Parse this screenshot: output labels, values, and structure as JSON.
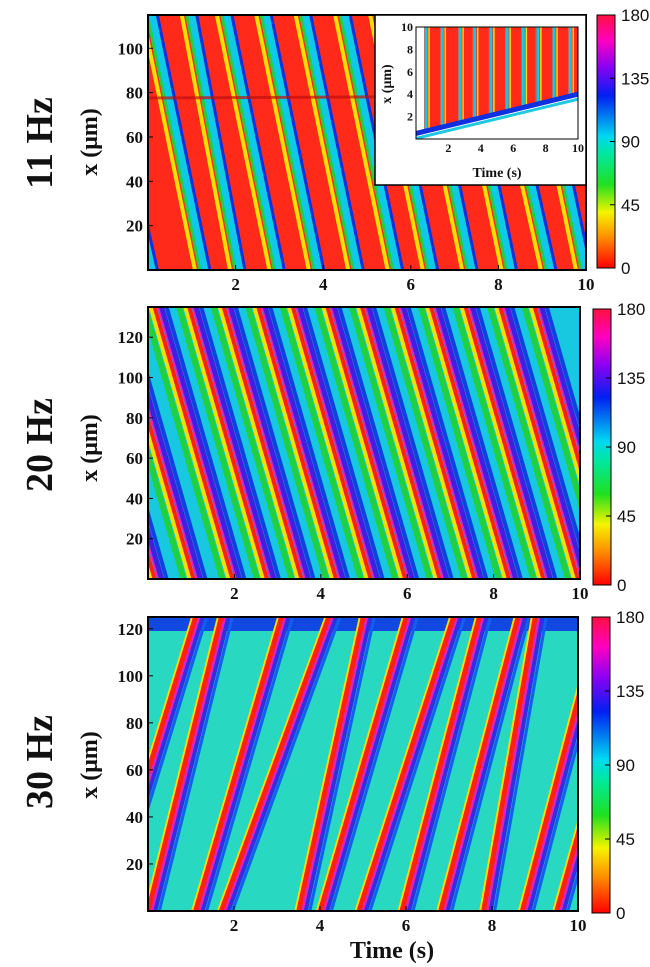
{
  "chart_data": [
    {
      "type": "heatmap",
      "label": "11 Hz",
      "xlabel": "",
      "ylabel": "x (μm)",
      "xlim": [
        0,
        10
      ],
      "ylim": [
        0,
        115
      ],
      "xticks": [
        2,
        4,
        6,
        8,
        10
      ],
      "yticks": [
        20,
        40,
        60,
        80,
        100
      ],
      "colorbar": {
        "range": [
          0,
          180
        ],
        "ticks": [
          0,
          45,
          90,
          135,
          180
        ]
      },
      "background": "#ff2a1a",
      "fronts": [
        {
          "t_top": -1.2,
          "t_bottom": 0.1,
          "color": "#10d0e0"
        },
        {
          "t_top": 0.1,
          "t_bottom": 1.3,
          "color": "#10d0e0"
        },
        {
          "t_top": 1.0,
          "t_bottom": 2.1,
          "color": "#10d0e0"
        },
        {
          "t_top": 1.8,
          "t_bottom": 3.0,
          "color": "#10d0e0"
        },
        {
          "t_top": 2.7,
          "t_bottom": 3.9,
          "color": "#10d0e0"
        },
        {
          "t_top": 3.6,
          "t_bottom": 4.8,
          "color": "#10d0e0"
        },
        {
          "t_top": 4.5,
          "t_bottom": 5.7,
          "color": "#10d0e0"
        },
        {
          "t_top": 5.3,
          "t_bottom": 6.5,
          "color": "#10d0e0"
        },
        {
          "t_top": 6.2,
          "t_bottom": 7.4,
          "color": "#10d0e0"
        },
        {
          "t_top": 7.1,
          "t_bottom": 8.3,
          "color": "#10d0e0"
        },
        {
          "t_top": 7.9,
          "t_bottom": 9.2,
          "color": "#10d0e0"
        },
        {
          "t_top": 8.8,
          "t_bottom": 10.0,
          "color": "#10d0e0"
        }
      ],
      "inset": {
        "type": "heatmap",
        "xlabel": "Time (s)",
        "ylabel": "x (μm)",
        "xlim": [
          0,
          10
        ],
        "ylim": [
          0,
          10
        ],
        "xticks": [
          2,
          4,
          6,
          8,
          10
        ],
        "yticks": [
          2,
          4,
          6,
          8,
          10
        ],
        "stripe_times": [
          0.5,
          1.5,
          2.6,
          3.5,
          4.5,
          5.5,
          6.5,
          7.4,
          8.4,
          9.4
        ],
        "boundary": [
          [
            0,
            0.5
          ],
          [
            10,
            4.0
          ]
        ]
      }
    },
    {
      "type": "heatmap",
      "label": "20 Hz",
      "xlabel": "",
      "ylabel": "x (μm)",
      "xlim": [
        0,
        10
      ],
      "ylim": [
        0,
        135
      ],
      "xticks": [
        2,
        4,
        6,
        8,
        10
      ],
      "yticks": [
        20,
        40,
        60,
        80,
        100,
        120
      ],
      "colorbar": {
        "range": [
          0,
          180
        ],
        "ticks": [
          0,
          45,
          90,
          135,
          180
        ]
      },
      "background": "#18c8e0",
      "fronts": [
        {
          "t_top": -1.6,
          "t_bottom": 0.2
        },
        {
          "t_top": -0.7,
          "t_bottom": 1.1
        },
        {
          "t_top": 0.2,
          "t_bottom": 2.0
        },
        {
          "t_top": 1.0,
          "t_bottom": 2.8
        },
        {
          "t_top": 1.8,
          "t_bottom": 3.6
        },
        {
          "t_top": 2.6,
          "t_bottom": 4.4
        },
        {
          "t_top": 3.4,
          "t_bottom": 5.2
        },
        {
          "t_top": 4.2,
          "t_bottom": 6.0
        },
        {
          "t_top": 5.0,
          "t_bottom": 6.8
        },
        {
          "t_top": 5.8,
          "t_bottom": 7.6
        },
        {
          "t_top": 6.6,
          "t_bottom": 8.4
        },
        {
          "t_top": 7.4,
          "t_bottom": 9.2
        },
        {
          "t_top": 8.2,
          "t_bottom": 10.0
        },
        {
          "t_top": 9.0,
          "t_bottom": 10.8
        }
      ]
    },
    {
      "type": "heatmap",
      "label": "30 Hz",
      "xlabel": "Time (s)",
      "ylabel": "x (μm)",
      "xlim": [
        0,
        10
      ],
      "ylim": [
        0,
        125
      ],
      "xticks": [
        2,
        4,
        6,
        8,
        10
      ],
      "yticks": [
        20,
        40,
        60,
        80,
        100,
        120
      ],
      "colorbar": {
        "range": [
          0,
          180
        ],
        "ticks": [
          0,
          45,
          90,
          135,
          180
        ]
      },
      "background": "#28d8c0",
      "fronts": [
        {
          "t_top": 1.2,
          "t_bottom": -0.9
        },
        {
          "t_top": 1.8,
          "t_bottom": 0.1
        },
        {
          "t_top": 3.2,
          "t_bottom": 1.2
        },
        {
          "t_top": 4.3,
          "t_bottom": 1.8
        },
        {
          "t_top": 5.1,
          "t_bottom": 3.6
        },
        {
          "t_top": 6.1,
          "t_bottom": 4.1
        },
        {
          "t_top": 7.2,
          "t_bottom": 5.0
        },
        {
          "t_top": 7.8,
          "t_bottom": 6.0
        },
        {
          "t_top": 8.7,
          "t_bottom": 6.9
        },
        {
          "t_top": 9.1,
          "t_bottom": 7.9
        },
        {
          "t_top": 10.6,
          "t_bottom": 8.8
        },
        {
          "t_top": 11.5,
          "t_bottom": 9.6
        }
      ]
    }
  ]
}
